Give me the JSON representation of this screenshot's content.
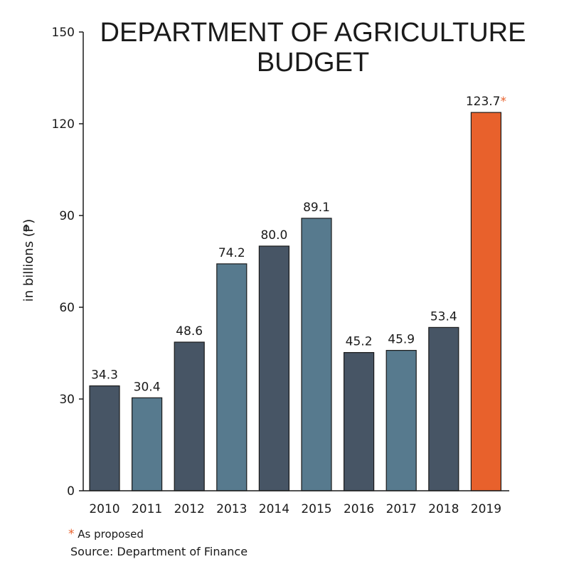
{
  "chart_data": {
    "type": "bar",
    "title_lines": [
      "DEPARTMENT OF AGRICULTURE",
      "BUDGET"
    ],
    "ylabel": "in billions (₱)",
    "xlabel": "",
    "ylim": [
      0,
      150
    ],
    "yticks": [
      0,
      30,
      60,
      90,
      120,
      150
    ],
    "categories": [
      "2010",
      "2011",
      "2012",
      "2013",
      "2014",
      "2015",
      "2016",
      "2017",
      "2018",
      "2019"
    ],
    "values": [
      34.3,
      30.4,
      48.6,
      74.2,
      80.0,
      89.1,
      45.2,
      45.9,
      53.4,
      123.7
    ],
    "value_labels": [
      "34.3",
      "30.4",
      "48.6",
      "74.2",
      "80.0",
      "89.1",
      "45.2",
      "45.9",
      "53.4",
      "123.7"
    ],
    "bar_colors": [
      "#475565",
      "#577a8e",
      "#475565",
      "#577a8e",
      "#475565",
      "#577a8e",
      "#475565",
      "#577a8e",
      "#475565",
      "#e8612c"
    ],
    "proposed_marker": "*",
    "proposed_index": 9,
    "grid": false
  },
  "colors": {
    "dark_bar": "#475565",
    "light_bar": "#577a8e",
    "highlight": "#e8612c",
    "axis": "#1a1a1a"
  },
  "footnote": {
    "star": "*",
    "text": "As proposed"
  },
  "source": "Source: Department of Finance"
}
